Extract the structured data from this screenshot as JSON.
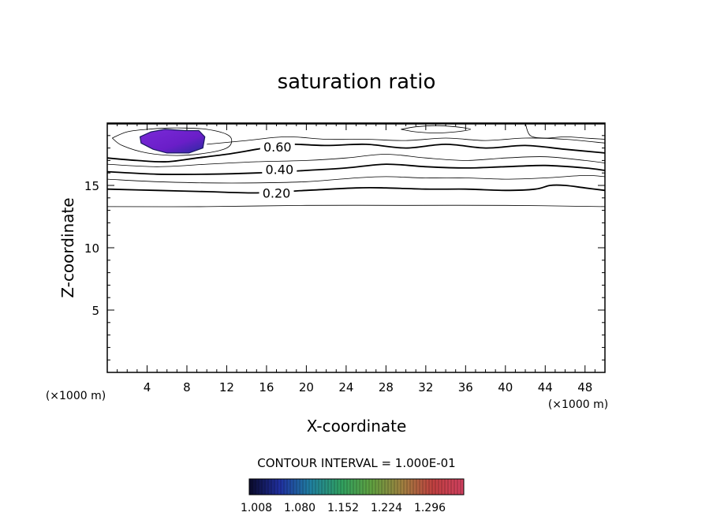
{
  "chart_data": {
    "type": "contour",
    "title": "saturation ratio",
    "xlabel": "X-coordinate",
    "ylabel": "Z-coordinate",
    "x_unit_label_left": "(×1000 m)",
    "x_unit_label_right": "(×1000 m)",
    "xlim": [
      0,
      50
    ],
    "ylim": [
      0,
      20
    ],
    "x_ticks": [
      4,
      8,
      12,
      16,
      20,
      24,
      28,
      32,
      36,
      40,
      44,
      48
    ],
    "y_ticks": [
      5,
      10,
      15
    ],
    "x_ticks_minor_step": 1,
    "y_ticks_minor_step": 1,
    "contour_interval_label": "CONTOUR INTERVAL = 1.000E-01",
    "contour_labels": [
      {
        "text": "0.60",
        "x": 17.1,
        "y": 18.1
      },
      {
        "text": "0.40",
        "x": 17.3,
        "y": 16.3
      },
      {
        "text": "0.20",
        "x": 17.0,
        "y": 14.4
      }
    ],
    "colorbar": {
      "tick_labels": [
        "1.008",
        "1.080",
        "1.152",
        "1.224",
        "1.296"
      ],
      "range": [
        1.008,
        1.296
      ],
      "colors": [
        "#0a0a2a",
        "#2030a0",
        "#2080a0",
        "#30a060",
        "#60a040",
        "#a08040",
        "#c04040",
        "#d04060"
      ]
    },
    "supersaturated_region": {
      "x": [
        4.4,
        5.8,
        7.8,
        9.2,
        9.8,
        9.6,
        8.2,
        6.0,
        4.6,
        3.4,
        3.3
      ],
      "y": [
        19.3,
        19.5,
        19.4,
        19.4,
        18.9,
        18.0,
        17.6,
        17.6,
        17.9,
        18.4,
        18.9
      ]
    },
    "contours": [
      {
        "value": 0.1,
        "style": "thin",
        "x": [
          0,
          10,
          20,
          30,
          40,
          50
        ],
        "y": [
          13.3,
          13.3,
          13.4,
          13.4,
          13.4,
          13.3
        ]
      },
      {
        "value": 0.2,
        "style": "thick",
        "x": [
          0,
          5,
          10,
          15,
          20,
          25,
          28,
          32,
          36,
          40,
          43,
          44.5,
          46,
          48,
          50
        ],
        "y": [
          14.7,
          14.6,
          14.5,
          14.4,
          14.6,
          14.8,
          14.8,
          14.7,
          14.7,
          14.6,
          14.7,
          15.0,
          15.0,
          14.8,
          14.6
        ]
      },
      {
        "value": 0.3,
        "style": "thin",
        "x": [
          0,
          5,
          10,
          15,
          20,
          25,
          28,
          32,
          36,
          40,
          44,
          48,
          50
        ],
        "y": [
          15.5,
          15.3,
          15.2,
          15.2,
          15.3,
          15.6,
          15.7,
          15.6,
          15.6,
          15.5,
          15.6,
          15.8,
          15.7
        ]
      },
      {
        "value": 0.4,
        "style": "thick",
        "x": [
          0,
          5,
          10,
          15,
          20,
          24,
          28,
          32,
          36,
          40,
          44,
          48,
          50
        ],
        "y": [
          16.1,
          15.9,
          15.9,
          16.0,
          16.2,
          16.4,
          16.7,
          16.5,
          16.4,
          16.5,
          16.6,
          16.4,
          16.2
        ]
      },
      {
        "value": 0.5,
        "style": "thin",
        "x": [
          0,
          5,
          10,
          15,
          20,
          24,
          28,
          32,
          36,
          40,
          44,
          48,
          50
        ],
        "y": [
          16.7,
          16.5,
          16.7,
          16.9,
          17.0,
          17.2,
          17.5,
          17.2,
          17.0,
          17.2,
          17.3,
          17.0,
          16.8
        ]
      },
      {
        "value": 0.6,
        "style": "thick",
        "x": [
          0,
          3,
          6,
          9,
          12,
          15,
          18,
          22,
          26,
          30,
          34,
          38,
          42,
          46,
          50
        ],
        "y": [
          17.2,
          17.0,
          16.9,
          17.2,
          17.5,
          17.9,
          18.3,
          18.2,
          18.3,
          18.0,
          18.3,
          18.0,
          18.2,
          17.9,
          17.6
        ]
      },
      {
        "value": 0.7,
        "style": "thin",
        "x": [
          10,
          14,
          18,
          22,
          26,
          30,
          34,
          38,
          42,
          46,
          50
        ],
        "y": [
          18.3,
          18.6,
          18.9,
          18.7,
          18.7,
          18.6,
          18.8,
          18.6,
          18.8,
          18.7,
          18.4
        ]
      },
      {
        "value": 0.7,
        "style": "thin",
        "x": [
          0.5,
          2,
          4,
          6,
          8,
          10,
          12,
          12.5,
          12,
          10,
          7,
          4,
          1.5,
          0.5
        ],
        "y": [
          18.8,
          19.3,
          19.5,
          19.6,
          19.6,
          19.5,
          19.1,
          18.6,
          18.0,
          17.6,
          17.4,
          17.6,
          18.2,
          18.8
        ]
      },
      {
        "value": 0.8,
        "style": "thin",
        "x": [
          29.5,
          31,
          33,
          35,
          36.5,
          35,
          33,
          31,
          29.5
        ],
        "y": [
          19.5,
          19.3,
          19.2,
          19.3,
          19.5,
          19.7,
          19.8,
          19.7,
          19.5
        ]
      },
      {
        "value": 0.8,
        "style": "thin",
        "x": [
          42,
          42.5,
          44,
          46,
          48,
          50
        ],
        "y": [
          20,
          19.0,
          18.8,
          18.9,
          18.8,
          18.7
        ]
      },
      {
        "value": 0.9,
        "style": "thick",
        "x": [
          0,
          50
        ],
        "y": [
          19.95,
          19.95
        ]
      }
    ]
  }
}
